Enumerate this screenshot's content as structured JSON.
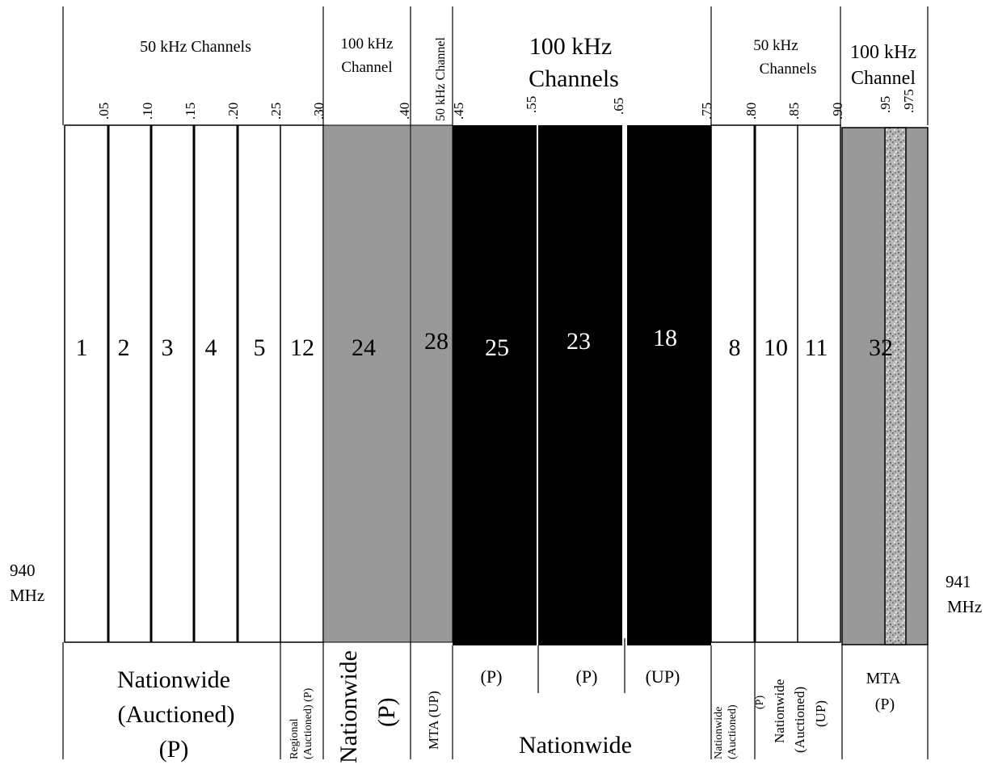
{
  "edge_labels": {
    "left": {
      "value": "940",
      "unit": "MHz"
    },
    "right": {
      "value": "941",
      "unit": "MHz"
    }
  },
  "group_headers": [
    {
      "id": "g1",
      "lines": [
        "50 kHz Channels"
      ]
    },
    {
      "id": "g2",
      "lines": [
        "100 kHz",
        "Channel"
      ]
    },
    {
      "id": "g3",
      "lines": [
        "50 kHz Channel"
      ]
    },
    {
      "id": "g4",
      "lines": [
        "100 kHz",
        "Channels"
      ]
    },
    {
      "id": "g5",
      "lines": [
        "50 kHz",
        "Channels"
      ]
    },
    {
      "id": "g6",
      "lines": [
        "100 kHz",
        "Channel"
      ]
    }
  ],
  "ticks": [
    ".05",
    ".10",
    ".15",
    ".20",
    ".25",
    ".30",
    ".40",
    ".45",
    ".55",
    ".65",
    ".75",
    ".80",
    ".85",
    ".90",
    ".95",
    ".975"
  ],
  "channels": [
    {
      "number": "1",
      "fill": "white"
    },
    {
      "number": "2",
      "fill": "white"
    },
    {
      "number": "3",
      "fill": "white"
    },
    {
      "number": "4",
      "fill": "white"
    },
    {
      "number": "5",
      "fill": "white"
    },
    {
      "number": "12",
      "fill": "white"
    },
    {
      "number": "24",
      "fill": "gray"
    },
    {
      "number": "28",
      "fill": "gray"
    },
    {
      "number": "25",
      "fill": "black"
    },
    {
      "number": "23",
      "fill": "black"
    },
    {
      "number": "18",
      "fill": "black"
    },
    {
      "number": "8",
      "fill": "white"
    },
    {
      "number": "10",
      "fill": "white"
    },
    {
      "number": "11",
      "fill": "white"
    },
    {
      "number": "32",
      "fill": "gray"
    }
  ],
  "bottom_labels": [
    {
      "id": "b1",
      "lines": [
        "Nationwide",
        "(Auctioned)",
        "(P)"
      ]
    },
    {
      "id": "b2",
      "lines": [
        "Regional",
        "(Auctioned) (P)"
      ]
    },
    {
      "id": "b3",
      "lines": [
        "Nationwide",
        "(P)"
      ]
    },
    {
      "id": "b4",
      "lines": [
        "MTA  (UP)"
      ]
    },
    {
      "id": "b5",
      "lines": [
        "(P)"
      ]
    },
    {
      "id": "b6",
      "lines": [
        "(P)"
      ]
    },
    {
      "id": "b7",
      "lines": [
        "(UP)"
      ]
    },
    {
      "id": "b8",
      "lines": [
        "Nationwide"
      ]
    },
    {
      "id": "b9",
      "lines": [
        "Nationwide",
        "(Auctioned)",
        "(P)"
      ]
    },
    {
      "id": "b10",
      "lines": [
        "Nationwide",
        "(Auctioned)",
        "(UP)"
      ]
    },
    {
      "id": "b11",
      "lines": [
        "MTA",
        "(P)"
      ]
    }
  ],
  "colors": {
    "gray": "#999999",
    "black": "#000000",
    "white": "#ffffff",
    "line": "#000000",
    "speckle_base": "#b8b8b8"
  }
}
